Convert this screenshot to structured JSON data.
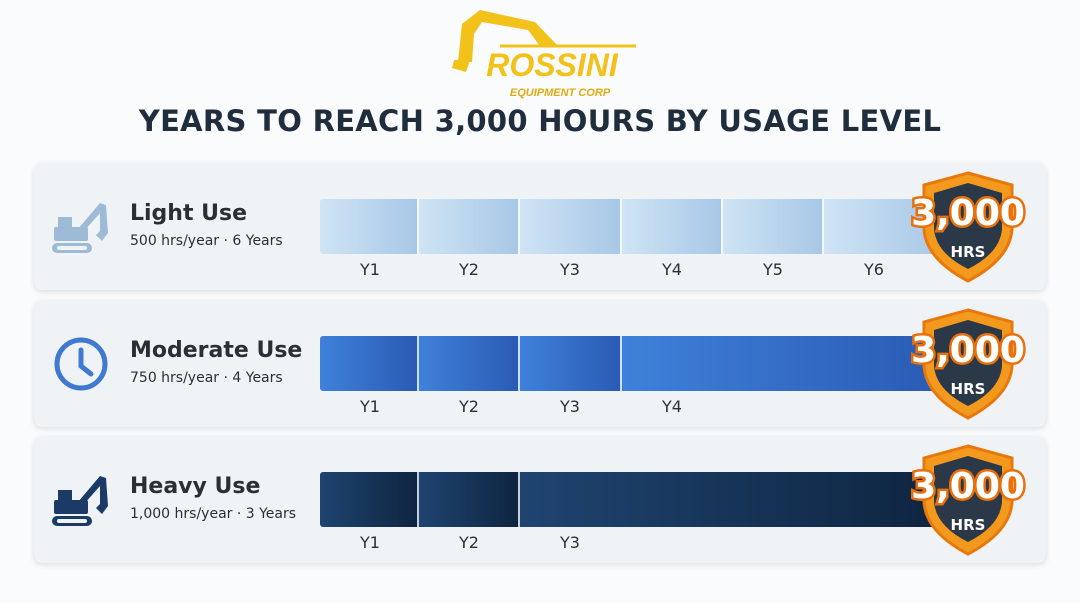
{
  "logo": {
    "brand": "ROSSINI",
    "tagline": "EQUIPMENT CORP",
    "color": "#f2c11a"
  },
  "title": "YEARS TO REACH 3,000 HOURS BY USAGE LEVEL",
  "badge": {
    "value": "3,000",
    "unit": "HRS"
  },
  "rows": [
    {
      "name": "Light Use",
      "detail": "500 hrs/year · 6 Years",
      "icon": "excavator-icon",
      "years": [
        "Y1",
        "Y2",
        "Y3",
        "Y4",
        "Y5",
        "Y6"
      ],
      "color_start": "#cfe4f5",
      "color_end": "#a7c8e6",
      "icon_color": "#9dbbd6"
    },
    {
      "name": "Moderate Use",
      "detail": "750 hrs/year · 4 Years",
      "icon": "clock-icon",
      "years": [
        "Y1",
        "Y2",
        "Y3",
        "Y4"
      ],
      "color_start": "#3f81da",
      "color_end": "#2a5bb4",
      "icon_color": "#3f7ad0"
    },
    {
      "name": "Heavy Use",
      "detail": "1,000 hrs/year · 3 Years",
      "icon": "excavator-icon",
      "years": [
        "Y1",
        "Y2",
        "Y3"
      ],
      "color_start": "#1f4470",
      "color_end": "#0e2540",
      "icon_color": "#1b3a66"
    }
  ]
}
